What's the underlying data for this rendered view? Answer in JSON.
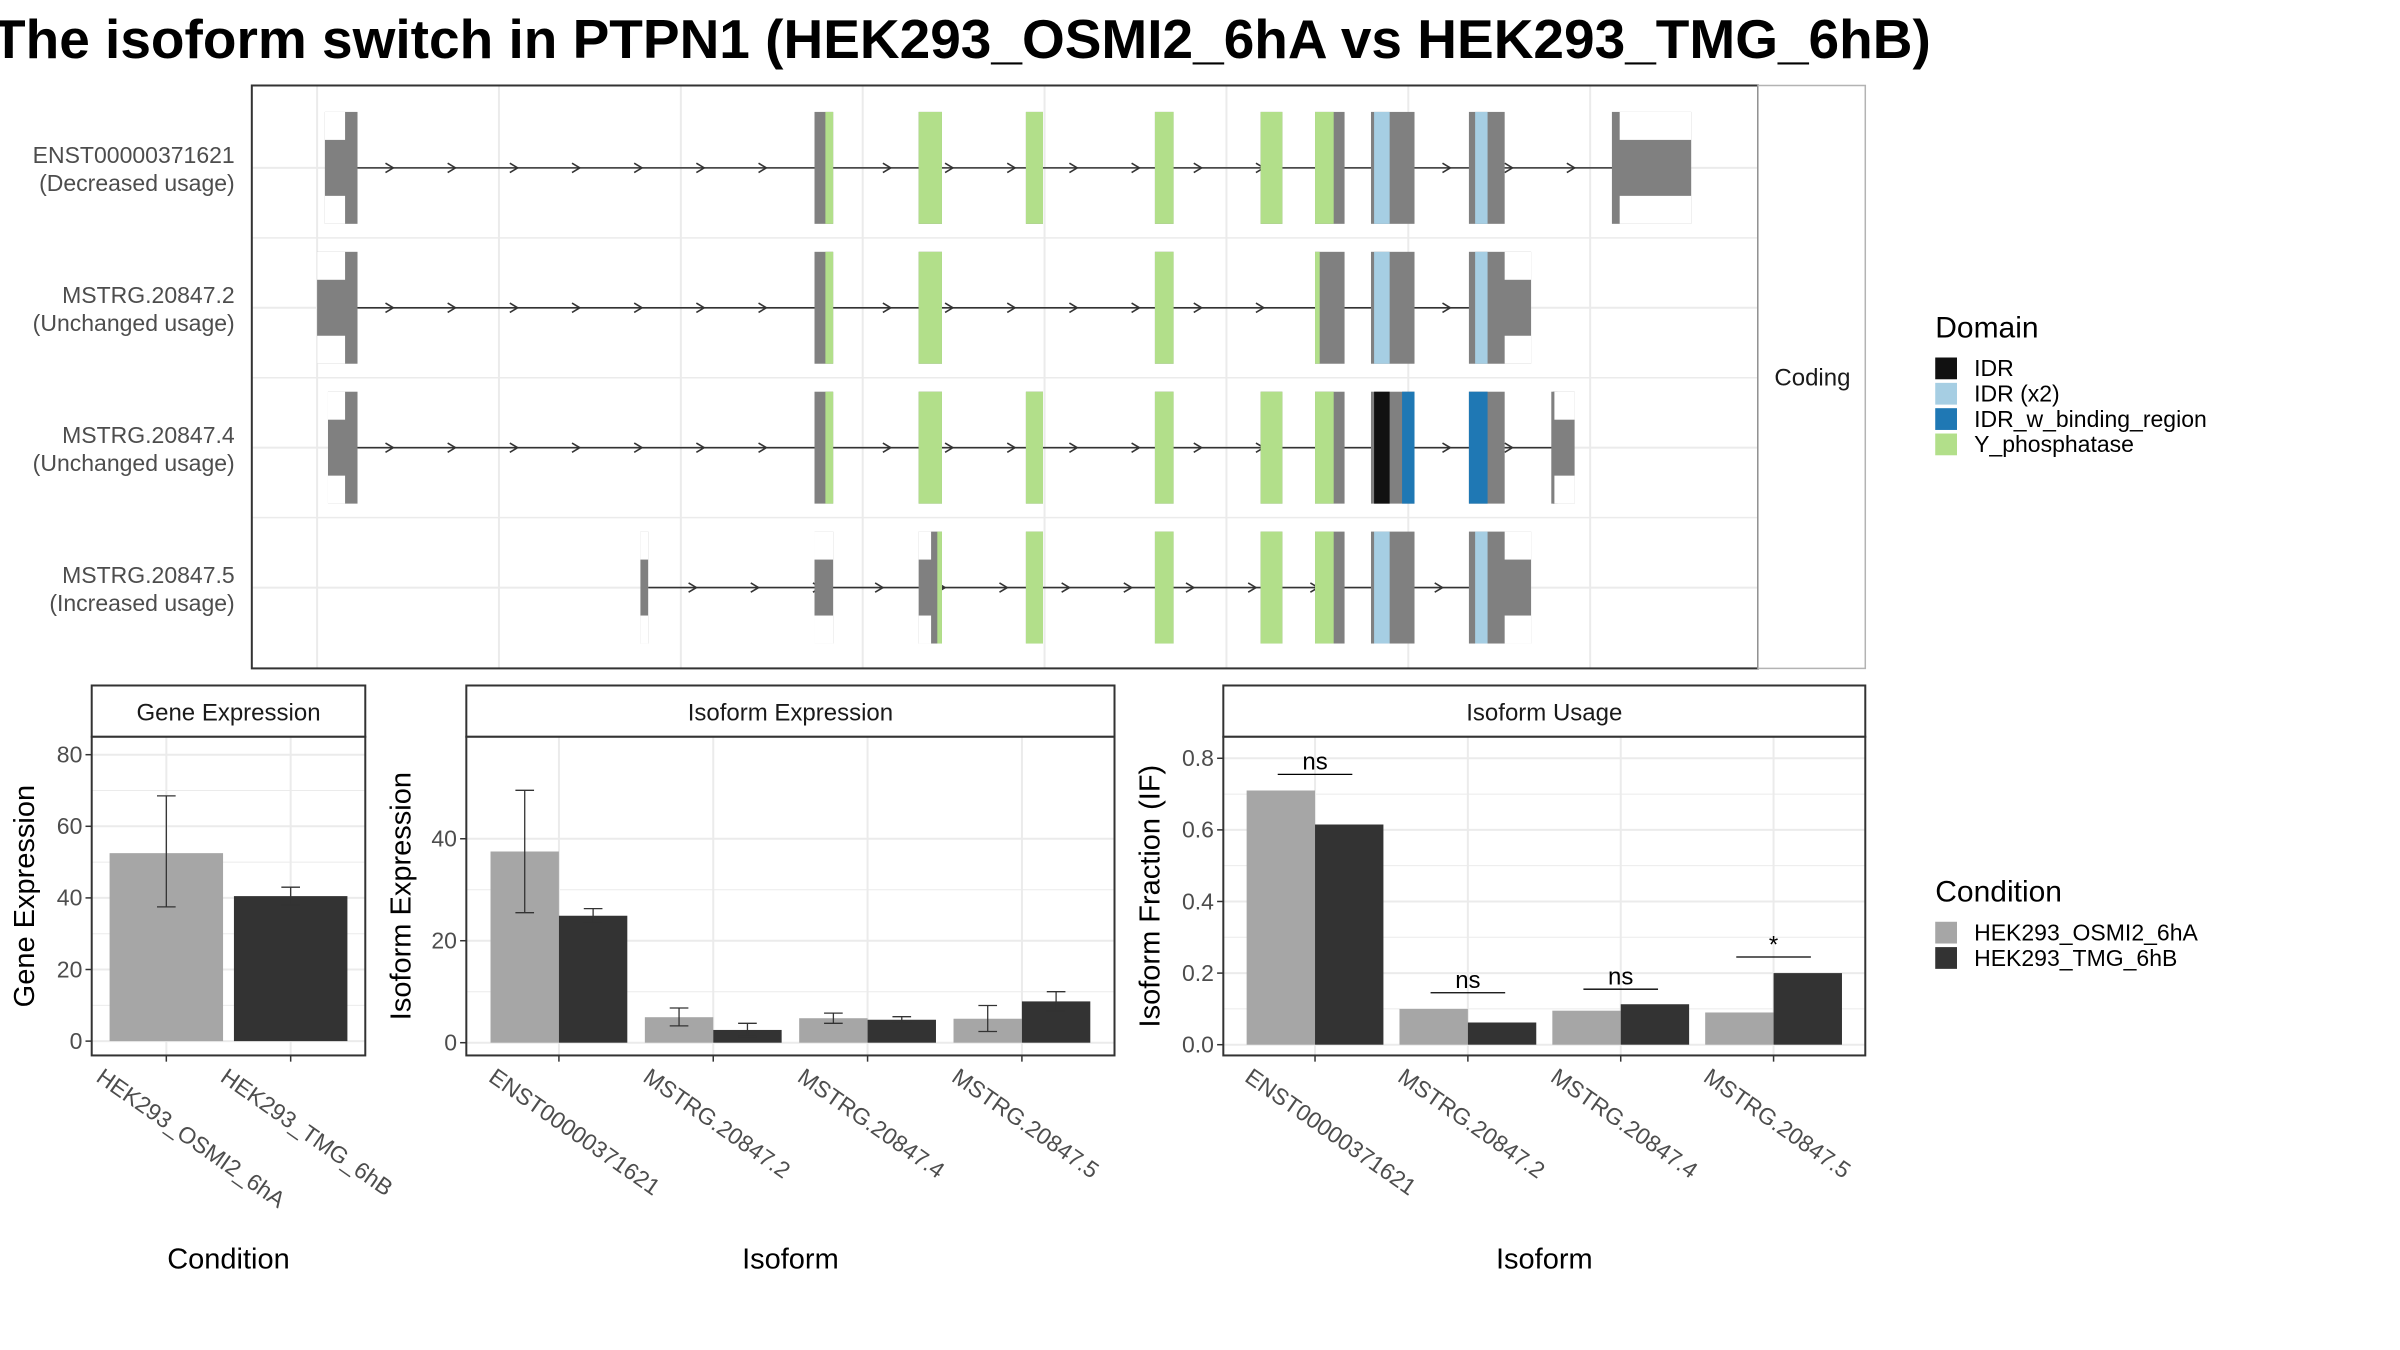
{
  "title": "The isoform switch in PTPN1 (HEK293_OSMI2_6hA vs HEK293_TMG_6hB)",
  "colors": {
    "exon": "#808080",
    "intron": "#333333",
    "IDR": "#111111",
    "IDR (x2)": "#a6cee3",
    "IDR_w_binding_region": "#1f78b4",
    "Y_phosphatase": "#b2df8a",
    "HEK293_OSMI2_6hA": "#a6a6a6",
    "HEK293_TMG_6hB": "#333333",
    "panel_border": "#333333",
    "strip_fill": "#ffffff",
    "grid": "#ebebeb"
  },
  "structure": {
    "strip_label": "Coding",
    "legend_title": "Domain",
    "legend_items": [
      "IDR",
      "IDR (x2)",
      "IDR_w_binding_region",
      "Y_phosphatase"
    ],
    "transcripts": [
      {
        "id": "ENST00000371621",
        "usage": "(Decreased usage)",
        "exons": [
          [
            209,
            230
          ],
          [
            524,
            536
          ],
          [
            591,
            606
          ],
          [
            660,
            671
          ],
          [
            743,
            755
          ],
          [
            811,
            825
          ],
          [
            846,
            865
          ],
          [
            882,
            910
          ],
          [
            945,
            968
          ],
          [
            1037,
            1088
          ]
        ],
        "utr": [
          [
            209,
            222
          ],
          [
            1042,
            1088
          ]
        ],
        "intron_start": 222,
        "intron_end": 1040,
        "domains": [
          {
            "name": "Y_phosphatase",
            "start": 531,
            "end": 536
          },
          {
            "name": "Y_phosphatase",
            "start": 591,
            "end": 606
          },
          {
            "name": "Y_phosphatase",
            "start": 660,
            "end": 671
          },
          {
            "name": "Y_phosphatase",
            "start": 743,
            "end": 755
          },
          {
            "name": "Y_phosphatase",
            "start": 811,
            "end": 825
          },
          {
            "name": "Y_phosphatase",
            "start": 846,
            "end": 858
          },
          {
            "name": "IDR (x2)",
            "start": 884,
            "end": 894
          },
          {
            "name": "IDR (x2)",
            "start": 949,
            "end": 957
          }
        ]
      },
      {
        "id": "MSTRG.20847.2",
        "usage": "(Unchanged usage)",
        "exons": [
          [
            204,
            230
          ],
          [
            524,
            536
          ],
          [
            591,
            606
          ],
          [
            743,
            755
          ],
          [
            846,
            865
          ],
          [
            882,
            910
          ],
          [
            945,
            985
          ]
        ],
        "utr": [
          [
            204,
            222
          ],
          [
            968,
            985
          ]
        ],
        "intron_start": 222,
        "intron_end": 968,
        "domains": [
          {
            "name": "Y_phosphatase",
            "start": 531,
            "end": 536
          },
          {
            "name": "Y_phosphatase",
            "start": 591,
            "end": 606
          },
          {
            "name": "Y_phosphatase",
            "start": 743,
            "end": 755
          },
          {
            "name": "Y_phosphatase",
            "start": 846,
            "end": 849
          },
          {
            "name": "IDR (x2)",
            "start": 884,
            "end": 894
          },
          {
            "name": "IDR (x2)",
            "start": 949,
            "end": 957
          }
        ]
      },
      {
        "id": "MSTRG.20847.4",
        "usage": "(Unchanged usage)",
        "exons": [
          [
            211,
            230
          ],
          [
            524,
            536
          ],
          [
            591,
            606
          ],
          [
            660,
            671
          ],
          [
            743,
            755
          ],
          [
            811,
            825
          ],
          [
            846,
            865
          ],
          [
            882,
            910
          ],
          [
            945,
            968
          ],
          [
            998,
            1002
          ],
          [
            999,
            1013
          ]
        ],
        "utr": [
          [
            211,
            222
          ],
          [
            1000,
            1013
          ]
        ],
        "intron_start": 222,
        "intron_end": 1000,
        "domains": [
          {
            "name": "Y_phosphatase",
            "start": 531,
            "end": 536
          },
          {
            "name": "Y_phosphatase",
            "start": 591,
            "end": 606
          },
          {
            "name": "Y_phosphatase",
            "start": 660,
            "end": 671
          },
          {
            "name": "Y_phosphatase",
            "start": 743,
            "end": 755
          },
          {
            "name": "Y_phosphatase",
            "start": 811,
            "end": 825
          },
          {
            "name": "Y_phosphatase",
            "start": 846,
            "end": 858
          },
          {
            "name": "IDR",
            "start": 884,
            "end": 894
          },
          {
            "name": "IDR_w_binding_region",
            "start": 902,
            "end": 910
          },
          {
            "name": "IDR_w_binding_region",
            "start": 945,
            "end": 957
          }
        ]
      },
      {
        "id": "MSTRG.20847.5",
        "usage": "(Increased usage)",
        "exons": [
          [
            412,
            417
          ],
          [
            524,
            536
          ],
          [
            591,
            606
          ],
          [
            660,
            671
          ],
          [
            743,
            755
          ],
          [
            811,
            825
          ],
          [
            846,
            865
          ],
          [
            882,
            910
          ],
          [
            945,
            985
          ]
        ],
        "utr": [
          [
            412,
            417
          ],
          [
            524,
            536
          ],
          [
            591,
            599
          ],
          [
            968,
            985
          ]
        ],
        "intron_start": 417,
        "intron_end": 968,
        "domains": [
          {
            "name": "Y_phosphatase",
            "start": 603,
            "end": 606
          },
          {
            "name": "Y_phosphatase",
            "start": 660,
            "end": 671
          },
          {
            "name": "Y_phosphatase",
            "start": 743,
            "end": 755
          },
          {
            "name": "Y_phosphatase",
            "start": 811,
            "end": 825
          },
          {
            "name": "Y_phosphatase",
            "start": 846,
            "end": 858
          },
          {
            "name": "IDR (x2)",
            "start": 884,
            "end": 894
          },
          {
            "name": "IDR (x2)",
            "start": 949,
            "end": 957
          }
        ]
      }
    ]
  },
  "chart_data": [
    {
      "type": "bar",
      "title": "Gene Expression",
      "xlabel": "Condition",
      "ylabel": "Gene Expression",
      "categories": [
        "HEK293_OSMI2_6hA",
        "HEK293_TMG_6hB"
      ],
      "values": [
        52.5,
        40.5
      ],
      "error_low": [
        37.5,
        38.0
      ],
      "error_high": [
        68.5,
        43.0
      ],
      "ylim": [
        -4,
        85
      ],
      "yticks": [
        0,
        20,
        40,
        60,
        80
      ]
    },
    {
      "type": "bar",
      "title": "Isoform Expression",
      "xlabel": "Isoform",
      "ylabel": "Isoform Expression",
      "categories": [
        "ENST00000371621",
        "MSTRG.20847.2",
        "MSTRG.20847.4",
        "MSTRG.20847.5"
      ],
      "series": [
        {
          "name": "HEK293_OSMI2_6hA",
          "values": [
            37.5,
            5.0,
            4.8,
            4.7
          ],
          "error_low": [
            25.5,
            3.3,
            3.8,
            2.2
          ],
          "error_high": [
            49.5,
            6.8,
            5.8,
            7.3
          ]
        },
        {
          "name": "HEK293_TMG_6hB",
          "values": [
            24.9,
            2.5,
            4.5,
            8.1
          ],
          "error_low": [
            23.5,
            1.2,
            3.9,
            6.2
          ],
          "error_high": [
            26.3,
            3.8,
            5.1,
            10.0
          ]
        }
      ],
      "ylim": [
        -2.5,
        60
      ],
      "yticks": [
        0,
        20,
        40
      ]
    },
    {
      "type": "bar",
      "title": "Isoform Usage",
      "xlabel": "Isoform",
      "ylabel": "Isoform Fraction (IF)",
      "categories": [
        "ENST00000371621",
        "MSTRG.20847.2",
        "MSTRG.20847.4",
        "MSTRG.20847.5"
      ],
      "series": [
        {
          "name": "HEK293_OSMI2_6hA",
          "values": [
            0.71,
            0.1,
            0.095,
            0.09
          ]
        },
        {
          "name": "HEK293_TMG_6hB",
          "values": [
            0.615,
            0.062,
            0.113,
            0.2
          ]
        }
      ],
      "significance": [
        "ns",
        "ns",
        "ns",
        "*"
      ],
      "significance_y": [
        0.755,
        0.145,
        0.155,
        0.245
      ],
      "ylim": [
        -0.03,
        0.86
      ],
      "yticks": [
        "0.0",
        "0.2",
        "0.4",
        "0.6",
        "0.8"
      ],
      "legend": {
        "title": "Condition",
        "position": "right",
        "items": [
          "HEK293_OSMI2_6hA",
          "HEK293_TMG_6hB"
        ]
      }
    }
  ]
}
